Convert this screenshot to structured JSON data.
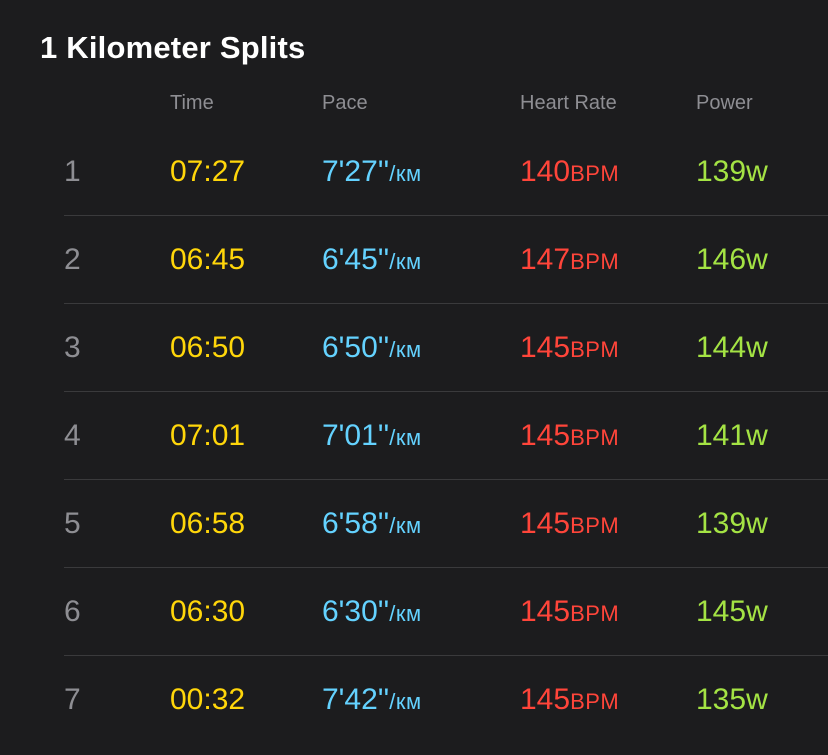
{
  "title": "1 Kilometer Splits",
  "columns": {
    "time": "Time",
    "pace": "Pace",
    "heart_rate": "Heart Rate",
    "power": "Power"
  },
  "units": {
    "pace": "/км",
    "heart_rate": "BPM",
    "power": "w"
  },
  "colors": {
    "background": "#1c1c1e",
    "time": "#ffd60a",
    "pace": "#64d2ff",
    "heart_rate": "#ff453a",
    "power": "#a4e344",
    "index": "#8e8e93",
    "header": "#8e8e93"
  },
  "splits": [
    {
      "index": "1",
      "time": "07:27",
      "pace": "7'27''",
      "heart_rate": "140",
      "power": "139"
    },
    {
      "index": "2",
      "time": "06:45",
      "pace": "6'45''",
      "heart_rate": "147",
      "power": "146"
    },
    {
      "index": "3",
      "time": "06:50",
      "pace": "6'50''",
      "heart_rate": "145",
      "power": "144"
    },
    {
      "index": "4",
      "time": "07:01",
      "pace": "7'01''",
      "heart_rate": "145",
      "power": "141"
    },
    {
      "index": "5",
      "time": "06:58",
      "pace": "6'58''",
      "heart_rate": "145",
      "power": "139"
    },
    {
      "index": "6",
      "time": "06:30",
      "pace": "6'30''",
      "heart_rate": "145",
      "power": "145"
    },
    {
      "index": "7",
      "time": "00:32",
      "pace": "7'42''",
      "heart_rate": "145",
      "power": "135"
    }
  ]
}
